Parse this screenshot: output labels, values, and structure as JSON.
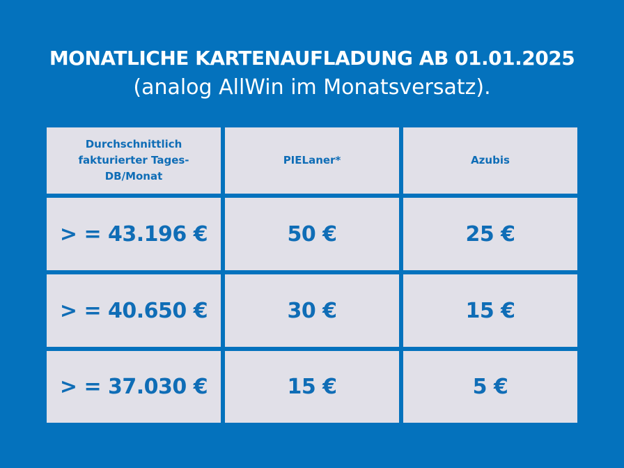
{
  "heading": {
    "title": "MONATLICHE KARTENAUFLADUNG AB 01.01.2025",
    "subtitle": "(analog AllWin im Monatsversatz)."
  },
  "colors": {
    "background": "#0472bd",
    "cell_background": "#e1e0e8",
    "cell_text": "#0f6db6",
    "heading_text": "#ffffff"
  },
  "table": {
    "headers": [
      "Durchschnittlich fakturierter Tages-DB/Monat",
      "PIELaner*",
      "Azubis"
    ],
    "rows": [
      [
        "> = 43.196 €",
        "50 €",
        "25 €"
      ],
      [
        "> = 40.650 €",
        "30 €",
        "15 €"
      ],
      [
        "> = 37.030 €",
        "15 €",
        "5 €"
      ]
    ]
  }
}
